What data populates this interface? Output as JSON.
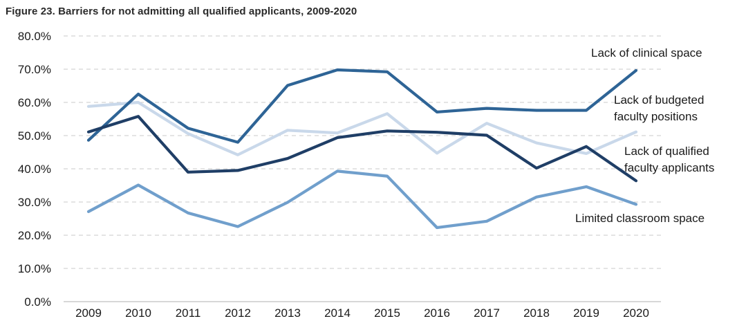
{
  "figure": {
    "title": "Figure 23. Barriers for not admitting all qualified applicants, 2009-2020"
  },
  "chart_data": {
    "type": "line",
    "title": "Figure 23. Barriers for not admitting all qualified applicants, 2009-2020",
    "xlabel": "",
    "ylabel": "",
    "ylim": [
      0,
      80
    ],
    "y_tick_labels": [
      "0.0%",
      "10.0%",
      "20.0%",
      "30.0%",
      "40.0%",
      "50.0%",
      "60.0%",
      "70.0%",
      "80.0%"
    ],
    "grid": "horizontal dashed",
    "legend": "direct labels at line ends",
    "categories": [
      "2009",
      "2010",
      "2011",
      "2012",
      "2013",
      "2014",
      "2015",
      "2016",
      "2017",
      "2018",
      "2019",
      "2020"
    ],
    "series": [
      {
        "name": "Lack of clinical space",
        "label_lines": [
          "Lack of clinical space"
        ],
        "color": "#2e6496",
        "values": [
          48.6,
          62.5,
          52.2,
          48.0,
          65.1,
          69.8,
          69.2,
          57.1,
          58.2,
          57.6,
          57.6,
          69.6
        ]
      },
      {
        "name": "Lack of budgeted faculty positions",
        "label_lines": [
          "Lack of budgeted",
          "faculty positions"
        ],
        "color": "#c9d8ea",
        "values": [
          58.8,
          60.0,
          50.6,
          44.2,
          51.6,
          50.8,
          56.6,
          44.7,
          53.7,
          47.8,
          44.6,
          51.1
        ]
      },
      {
        "name": "Lack of qualified faculty applicants",
        "label_lines": [
          "Lack of qualified",
          "faculty applicants"
        ],
        "color": "#1f3e66",
        "values": [
          51.1,
          55.8,
          39.0,
          39.5,
          43.1,
          49.4,
          51.4,
          51.0,
          50.1,
          40.2,
          46.7,
          36.4
        ]
      },
      {
        "name": "Limited classroom space",
        "label_lines": [
          "Limited classroom space"
        ],
        "color": "#709fcc",
        "values": [
          27.1,
          35.1,
          26.7,
          22.6,
          29.9,
          39.3,
          37.8,
          22.3,
          24.2,
          31.5,
          34.6,
          29.3
        ]
      }
    ]
  }
}
